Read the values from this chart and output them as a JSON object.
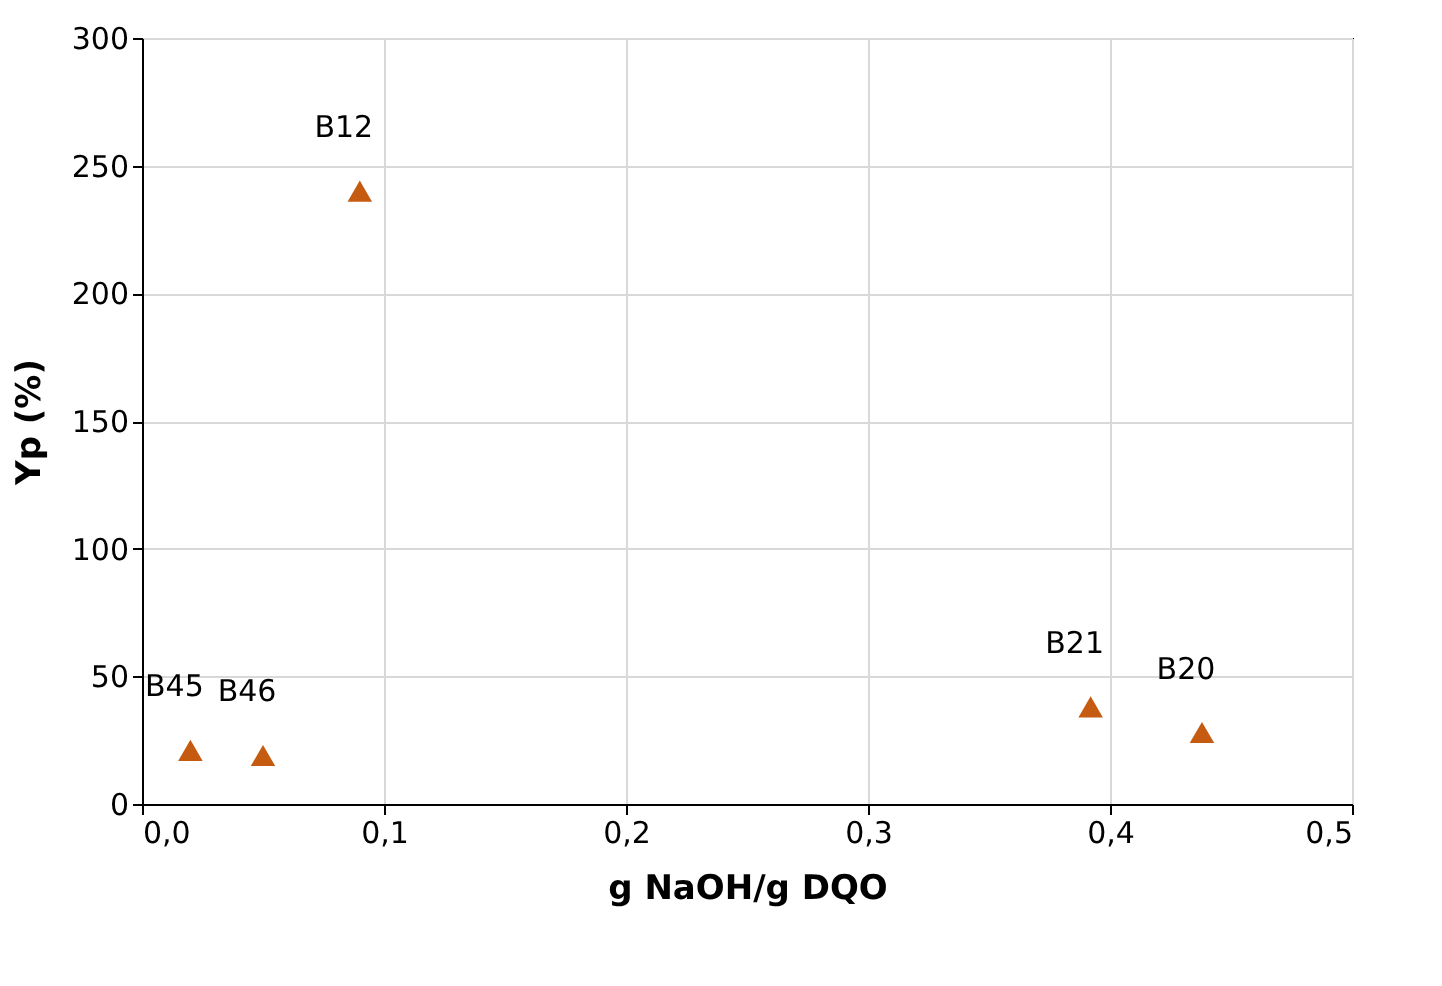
{
  "chart_data": {
    "type": "scatter",
    "xlabel": "g NaOH/g DQO",
    "ylabel": "Yp (%)",
    "x": [
      0.09,
      0.02,
      0.05,
      0.392,
      0.438
    ],
    "series": [
      {
        "color": "#c55a11",
        "values": [
          240,
          21,
          19,
          38,
          28
        ]
      }
    ],
    "marker": "triangle",
    "grid": true,
    "xlim": [
      0,
      0.5
    ],
    "ylim": [
      0,
      300
    ],
    "xticks": [
      {
        "value": 0,
        "label": "0,0"
      },
      {
        "value": 0.1,
        "label": "0,1"
      },
      {
        "value": 0.2,
        "label": "0,2"
      },
      {
        "value": 0.3,
        "label": "0,3"
      },
      {
        "value": 0.4,
        "label": "0,4"
      },
      {
        "value": 0.5,
        "label": "0,5"
      }
    ],
    "yticks": [
      0,
      50,
      100,
      150,
      200,
      250,
      300
    ],
    "annotations": [
      {
        "text": "B12",
        "x": 0.09,
        "y": 240
      },
      {
        "text": "B45",
        "x": 0.02,
        "y": 21
      },
      {
        "text": "B46",
        "x": 0.05,
        "y": 19
      },
      {
        "text": "B21",
        "x": 0.392,
        "y": 38
      },
      {
        "text": "B20",
        "x": 0.438,
        "y": 28
      }
    ]
  }
}
